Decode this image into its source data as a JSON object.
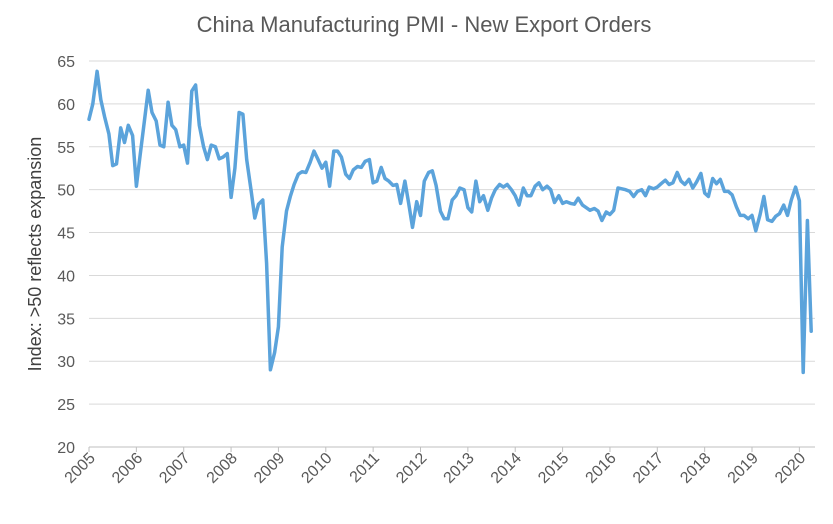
{
  "chart_data": {
    "type": "line",
    "title": "China Manufacturing PMI - New Export Orders",
    "xlabel": "",
    "ylabel": "Index: >50 reflects expansion",
    "ylim": [
      20,
      65
    ],
    "yticks": [
      20,
      25,
      30,
      35,
      40,
      45,
      50,
      55,
      60,
      65
    ],
    "xlim": [
      2005.0,
      2020.33
    ],
    "xticks": [
      "2005",
      "2006",
      "2007",
      "2008",
      "2009",
      "2010",
      "2011",
      "2012",
      "2013",
      "2014",
      "2015",
      "2016",
      "2017",
      "2018",
      "2019",
      "2020"
    ],
    "grid": "horizontal",
    "line_color": "#5BA3DB",
    "series": [
      {
        "x": [
          2005.0,
          2005.08,
          2005.17,
          2005.25,
          2005.33,
          2005.42,
          2005.5,
          2005.58,
          2005.67,
          2005.75,
          2005.83,
          2005.92,
          2006.0,
          2006.08,
          2006.17,
          2006.25,
          2006.33,
          2006.42,
          2006.5,
          2006.58,
          2006.67,
          2006.75,
          2006.83,
          2006.92,
          2007.0,
          2007.08,
          2007.17,
          2007.25,
          2007.33,
          2007.42,
          2007.5,
          2007.58,
          2007.67,
          2007.75,
          2007.83,
          2007.92,
          2008.0,
          2008.08,
          2008.17,
          2008.25,
          2008.33,
          2008.42,
          2008.5,
          2008.58,
          2008.67,
          2008.75,
          2008.83,
          2008.92,
          2009.0,
          2009.08,
          2009.17,
          2009.25,
          2009.33,
          2009.42,
          2009.5,
          2009.58,
          2009.67,
          2009.75,
          2009.83,
          2009.92,
          2010.0,
          2010.08,
          2010.17,
          2010.25,
          2010.33,
          2010.42,
          2010.5,
          2010.58,
          2010.67,
          2010.75,
          2010.83,
          2010.92,
          2011.0,
          2011.08,
          2011.17,
          2011.25,
          2011.33,
          2011.42,
          2011.5,
          2011.58,
          2011.67,
          2011.75,
          2011.83,
          2011.92,
          2012.0,
          2012.08,
          2012.17,
          2012.25,
          2012.33,
          2012.42,
          2012.5,
          2012.58,
          2012.67,
          2012.75,
          2012.83,
          2012.92,
          2013.0,
          2013.08,
          2013.17,
          2013.25,
          2013.33,
          2013.42,
          2013.5,
          2013.58,
          2013.67,
          2013.75,
          2013.83,
          2013.92,
          2014.0,
          2014.08,
          2014.17,
          2014.25,
          2014.33,
          2014.42,
          2014.5,
          2014.58,
          2014.67,
          2014.75,
          2014.83,
          2014.92,
          2015.0,
          2015.08,
          2015.17,
          2015.25,
          2015.33,
          2015.42,
          2015.5,
          2015.58,
          2015.67,
          2015.75,
          2015.83,
          2015.92,
          2016.0,
          2016.08,
          2016.17,
          2016.25,
          2016.33,
          2016.42,
          2016.5,
          2016.58,
          2016.67,
          2016.75,
          2016.83,
          2016.92,
          2017.0,
          2017.08,
          2017.17,
          2017.25,
          2017.33,
          2017.42,
          2017.5,
          2017.58,
          2017.67,
          2017.75,
          2017.83,
          2017.92,
          2018.0,
          2018.08,
          2018.17,
          2018.25,
          2018.33,
          2018.42,
          2018.5,
          2018.58,
          2018.67,
          2018.75,
          2018.83,
          2018.92,
          2019.0,
          2019.08,
          2019.17,
          2019.25,
          2019.33,
          2019.42,
          2019.5,
          2019.58,
          2019.67,
          2019.75,
          2019.83,
          2019.92,
          2020.0,
          2020.08,
          2020.17,
          2020.25
        ],
        "values": [
          58.2,
          60.0,
          63.8,
          60.5,
          58.5,
          56.5,
          52.8,
          53.0,
          57.2,
          55.5,
          57.5,
          56.3,
          50.4,
          54.0,
          58.0,
          61.6,
          59.0,
          58.0,
          55.2,
          55.0,
          60.2,
          57.5,
          57.0,
          55.0,
          55.2,
          53.1,
          61.5,
          62.2,
          57.5,
          55.0,
          53.5,
          55.2,
          55.0,
          53.6,
          53.8,
          54.2,
          49.1,
          52.5,
          59.0,
          58.8,
          53.5,
          50.0,
          46.7,
          48.3,
          48.8,
          41.4,
          29.0,
          31.0,
          34.0,
          43.3,
          47.5,
          49.2,
          50.6,
          51.8,
          52.1,
          52.0,
          53.2,
          54.5,
          53.6,
          52.5,
          53.2,
          50.4,
          54.5,
          54.5,
          53.8,
          51.8,
          51.3,
          52.3,
          52.7,
          52.6,
          53.3,
          53.5,
          50.8,
          51.0,
          52.6,
          51.3,
          51.0,
          50.5,
          50.6,
          48.4,
          51.0,
          48.4,
          45.6,
          48.6,
          47.0,
          51.0,
          52.0,
          52.2,
          50.5,
          47.5,
          46.6,
          46.6,
          48.8,
          49.3,
          50.2,
          50.0,
          47.9,
          47.4,
          51.0,
          48.6,
          49.3,
          47.6,
          49.0,
          50.0,
          50.6,
          50.3,
          50.6,
          50.0,
          49.3,
          48.2,
          50.2,
          49.3,
          49.3,
          50.4,
          50.8,
          50.0,
          50.4,
          50.0,
          48.5,
          49.3,
          48.4,
          48.6,
          48.4,
          48.3,
          49.0,
          48.2,
          47.9,
          47.6,
          47.8,
          47.5,
          46.4,
          47.4,
          47.1,
          47.6,
          50.2,
          50.1,
          50.0,
          49.8,
          49.2,
          49.8,
          50.0,
          49.3,
          50.3,
          50.1,
          50.3,
          50.7,
          51.1,
          50.6,
          50.8,
          52.0,
          51.0,
          50.6,
          51.2,
          50.2,
          50.9,
          51.9,
          49.6,
          49.2,
          51.3,
          50.7,
          51.2,
          49.8,
          49.8,
          49.4,
          48.0,
          47.0,
          47.0,
          46.6,
          47.0,
          45.2,
          47.1,
          49.2,
          46.5,
          46.3,
          46.9,
          47.2,
          48.2,
          47.0,
          48.8,
          50.3,
          48.7,
          28.7,
          46.4,
          33.5
        ]
      }
    ]
  }
}
